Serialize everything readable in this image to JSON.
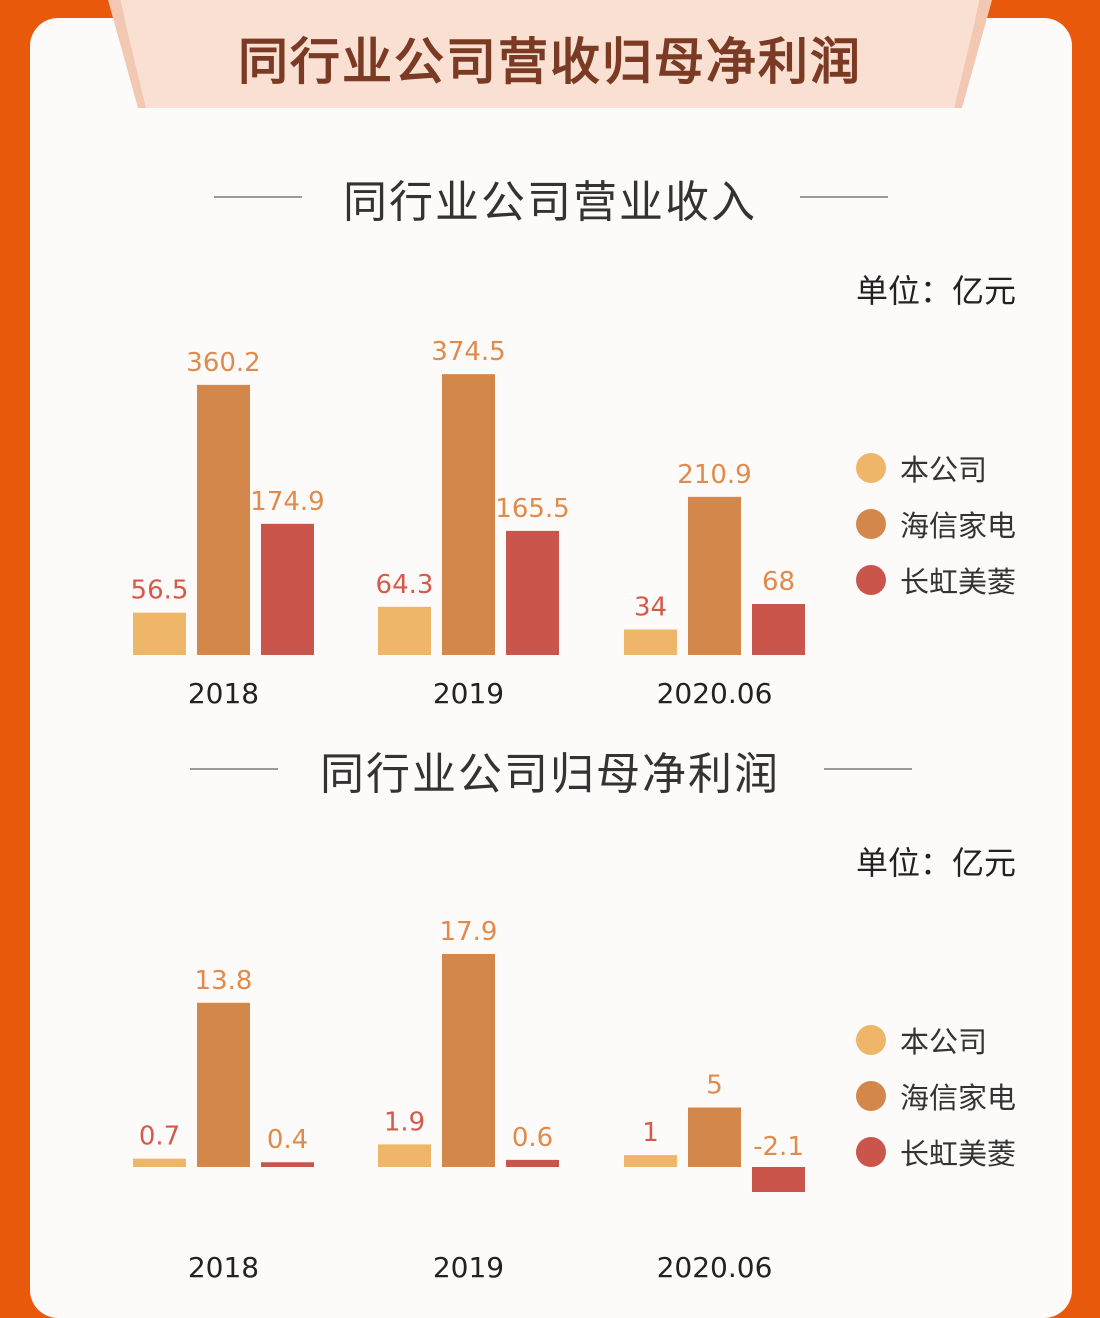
{
  "header": {
    "title": "同行业公司营收归母净利润"
  },
  "colors": {
    "benGongSi": "#efb66a",
    "hisense": "#d3874a",
    "changhong": "#c9554b"
  },
  "legend": [
    {
      "label": "本公司",
      "color": "#efb66a"
    },
    {
      "label": "海信家电",
      "color": "#d3874a"
    },
    {
      "label": "长虹美菱",
      "color": "#c9554b"
    }
  ],
  "chart_data": [
    {
      "type": "bar",
      "title": "同行业公司营业收入",
      "unit": "单位：亿元",
      "categories": [
        "2018",
        "2019",
        "2020.06"
      ],
      "series": [
        {
          "name": "本公司",
          "values": [
            56.5,
            64.3,
            34
          ]
        },
        {
          "name": "海信家电",
          "values": [
            360.2,
            374.5,
            210.9
          ]
        },
        {
          "name": "长虹美菱",
          "values": [
            174.9,
            165.5,
            68
          ]
        }
      ],
      "labels": [
        [
          "56.5",
          "64.3",
          "34"
        ],
        [
          "360.2",
          "374.5",
          "210.9"
        ],
        [
          "174.9",
          "165.5",
          "68"
        ]
      ],
      "legend_position": "right"
    },
    {
      "type": "bar",
      "title": "同行业公司归母净利润",
      "unit": "单位：亿元",
      "categories": [
        "2018",
        "2019",
        "2020.06"
      ],
      "series": [
        {
          "name": "本公司",
          "values": [
            0.7,
            1.9,
            1
          ]
        },
        {
          "name": "海信家电",
          "values": [
            13.8,
            17.9,
            5
          ]
        },
        {
          "name": "长虹美菱",
          "values": [
            0.4,
            0.6,
            -2.1
          ]
        }
      ],
      "labels": [
        [
          "0.7",
          "1.9",
          "1"
        ],
        [
          "13.8",
          "17.9",
          "5"
        ],
        [
          "0.4",
          "0.6",
          "-2.1"
        ]
      ],
      "legend_position": "right"
    }
  ]
}
